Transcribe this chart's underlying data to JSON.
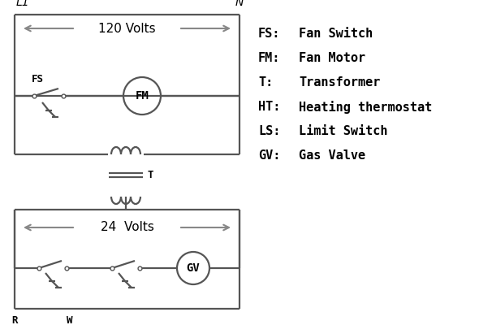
{
  "bg_color": "#ffffff",
  "line_color": "#555555",
  "arrow_color": "#888888",
  "text_color": "#000000",
  "line_width": 1.6,
  "legend_items": [
    [
      "FS:",
      "Fan Switch"
    ],
    [
      "FM:",
      "Fan Motor"
    ],
    [
      "T:",
      "Transformer"
    ],
    [
      "HT:",
      "Heating thermostat"
    ],
    [
      "LS:",
      "Limit Switch"
    ],
    [
      "GV:",
      "Gas Valve"
    ]
  ]
}
